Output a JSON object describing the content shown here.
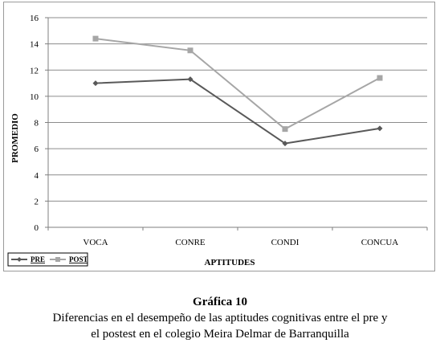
{
  "chart_data": {
    "type": "line",
    "categories": [
      "VOCA",
      "CONRE",
      "CONDI",
      "CONCUA"
    ],
    "series": [
      {
        "name": "PRE",
        "values": [
          11.0,
          11.3,
          6.4,
          7.55
        ],
        "color": "#595959",
        "marker": "diamond"
      },
      {
        "name": "POST",
        "values": [
          14.4,
          13.5,
          7.5,
          11.4
        ],
        "color": "#a6a6a6",
        "marker": "square"
      }
    ],
    "ylim": [
      0,
      16
    ],
    "yticks": [
      "0",
      "2",
      "4",
      "6",
      "8",
      "10",
      "12",
      "14",
      "16"
    ],
    "xlabel": "APTITUDES",
    "ylabel": "PROMEDIO",
    "grid": true,
    "legend": "bottom-left"
  },
  "caption": {
    "title": "Gráfica 10",
    "line1": "Diferencias en el desempeño de las aptitudes cognitivas entre el pre y",
    "line2": "el postest en el colegio Meira Delmar de Barranquilla"
  }
}
